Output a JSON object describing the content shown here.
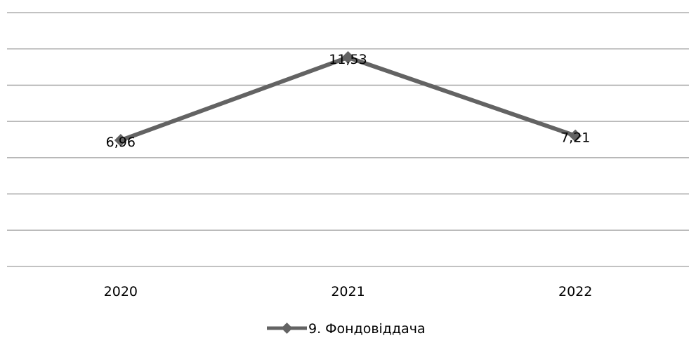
{
  "chart_data": {
    "type": "line",
    "categories": [
      "2020",
      "2021",
      "2022"
    ],
    "series": [
      {
        "name": "9. Фондовіддача",
        "values": [
          6.96,
          11.53,
          7.21
        ],
        "color": "#636363",
        "marker": "diamond"
      }
    ],
    "data_labels": [
      "6,96",
      "11,53",
      "7,21"
    ],
    "ylim": [
      0,
      14
    ],
    "y_gridline_step": 2,
    "grid": true,
    "y_axis_labels_shown": false,
    "legend_position": "bottom"
  }
}
